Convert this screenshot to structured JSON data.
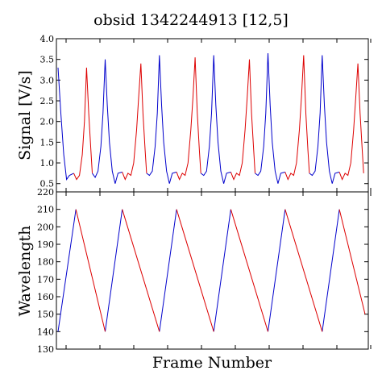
{
  "chart_data": [
    {
      "type": "line",
      "title": "obsid 1342244913 [12,5]",
      "ylabel": "Signal [V/s]",
      "xlabel": "",
      "ylim": [
        0.3,
        4.0
      ],
      "yticks": [
        "0.5",
        "1.0",
        "1.5",
        "2.0",
        "2.5",
        "3.0",
        "3.5",
        "4.0"
      ],
      "grid": false,
      "series": [
        {
          "color": "#0000cc",
          "segments": [
            [
              [
                0,
                3.3
              ],
              [
                4,
                2.2
              ],
              [
                8,
                1.2
              ],
              [
                12,
                0.6
              ],
              [
                16,
                0.7
              ],
              [
                22,
                0.75
              ]
            ],
            [
              [
                48,
                0.75
              ],
              [
                52,
                0.65
              ],
              [
                56,
                0.8
              ],
              [
                60,
                1.4
              ],
              [
                63,
                2.2
              ],
              [
                66,
                3.5
              ],
              [
                69,
                2.4
              ],
              [
                72,
                1.5
              ],
              [
                76,
                0.8
              ],
              [
                80,
                0.5
              ],
              [
                84,
                0.75
              ],
              [
                90,
                0.78
              ]
            ],
            [
              [
                124,
                0.75
              ],
              [
                128,
                0.7
              ],
              [
                132,
                0.8
              ],
              [
                136,
                1.4
              ],
              [
                139,
                2.2
              ],
              [
                142,
                3.6
              ],
              [
                145,
                2.4
              ],
              [
                148,
                1.5
              ],
              [
                152,
                0.8
              ],
              [
                156,
                0.5
              ],
              [
                160,
                0.75
              ],
              [
                166,
                0.78
              ]
            ],
            [
              [
                200,
                0.75
              ],
              [
                204,
                0.7
              ],
              [
                208,
                0.8
              ],
              [
                212,
                1.4
              ],
              [
                215,
                2.2
              ],
              [
                218,
                3.6
              ],
              [
                221,
                2.4
              ],
              [
                224,
                1.5
              ],
              [
                228,
                0.8
              ],
              [
                232,
                0.5
              ],
              [
                236,
                0.75
              ],
              [
                242,
                0.78
              ]
            ],
            [
              [
                276,
                0.75
              ],
              [
                280,
                0.7
              ],
              [
                284,
                0.8
              ],
              [
                288,
                1.4
              ],
              [
                291,
                2.2
              ],
              [
                294,
                3.65
              ],
              [
                297,
                2.4
              ],
              [
                300,
                1.5
              ],
              [
                304,
                0.8
              ],
              [
                308,
                0.5
              ],
              [
                312,
                0.75
              ],
              [
                318,
                0.78
              ]
            ],
            [
              [
                352,
                0.75
              ],
              [
                356,
                0.7
              ],
              [
                360,
                0.8
              ],
              [
                364,
                1.4
              ],
              [
                367,
                2.2
              ],
              [
                370,
                3.6
              ],
              [
                373,
                2.4
              ],
              [
                376,
                1.5
              ],
              [
                380,
                0.8
              ],
              [
                384,
                0.5
              ],
              [
                388,
                0.75
              ],
              [
                394,
                0.78
              ]
            ]
          ]
        },
        {
          "color": "#dd0000",
          "segments": [
            [
              [
                22,
                0.75
              ],
              [
                26,
                0.6
              ],
              [
                30,
                0.7
              ],
              [
                34,
                1.2
              ],
              [
                37,
                2.0
              ],
              [
                40,
                3.3
              ],
              [
                43,
                2.2
              ],
              [
                46,
                1.3
              ],
              [
                48,
                0.75
              ]
            ],
            [
              [
                90,
                0.78
              ],
              [
                94,
                0.6
              ],
              [
                98,
                0.75
              ],
              [
                102,
                0.7
              ],
              [
                106,
                1.0
              ],
              [
                110,
                1.8
              ],
              [
                113,
                2.6
              ],
              [
                116,
                3.4
              ],
              [
                119,
                2.2
              ],
              [
                122,
                1.3
              ],
              [
                124,
                0.75
              ]
            ],
            [
              [
                166,
                0.78
              ],
              [
                170,
                0.6
              ],
              [
                174,
                0.75
              ],
              [
                178,
                0.7
              ],
              [
                182,
                1.0
              ],
              [
                186,
                1.8
              ],
              [
                189,
                2.6
              ],
              [
                192,
                3.55
              ],
              [
                195,
                2.2
              ],
              [
                198,
                1.3
              ],
              [
                200,
                0.75
              ]
            ],
            [
              [
                242,
                0.78
              ],
              [
                246,
                0.6
              ],
              [
                250,
                0.75
              ],
              [
                254,
                0.7
              ],
              [
                258,
                1.0
              ],
              [
                262,
                1.8
              ],
              [
                265,
                2.6
              ],
              [
                268,
                3.5
              ],
              [
                271,
                2.2
              ],
              [
                274,
                1.3
              ],
              [
                276,
                0.75
              ]
            ],
            [
              [
                318,
                0.78
              ],
              [
                322,
                0.6
              ],
              [
                326,
                0.75
              ],
              [
                330,
                0.7
              ],
              [
                334,
                1.0
              ],
              [
                338,
                1.8
              ],
              [
                341,
                2.6
              ],
              [
                344,
                3.6
              ],
              [
                347,
                2.2
              ],
              [
                350,
                1.3
              ],
              [
                352,
                0.75
              ]
            ],
            [
              [
                394,
                0.78
              ],
              [
                398,
                0.6
              ],
              [
                402,
                0.75
              ],
              [
                406,
                0.7
              ],
              [
                410,
                1.0
              ],
              [
                414,
                1.8
              ],
              [
                417,
                2.6
              ],
              [
                420,
                3.4
              ],
              [
                423,
                2.2
              ],
              [
                426,
                1.3
              ],
              [
                428,
                0.75
              ]
            ]
          ]
        }
      ]
    },
    {
      "type": "line",
      "title": "",
      "ylabel": "Wavelength",
      "xlabel": "Frame Number",
      "ylim": [
        130,
        220
      ],
      "yticks": [
        "130",
        "140",
        "150",
        "160",
        "170",
        "180",
        "190",
        "200",
        "210",
        "220"
      ],
      "grid": false,
      "series": [
        {
          "color": "#0000cc",
          "segments": [
            [
              [
                0,
                140
              ],
              [
                25,
                210
              ]
            ],
            [
              [
                66,
                140
              ],
              [
                90,
                210
              ]
            ],
            [
              [
                142,
                140
              ],
              [
                166,
                210
              ]
            ],
            [
              [
                218,
                140
              ],
              [
                242,
                210
              ]
            ],
            [
              [
                294,
                140
              ],
              [
                318,
                210
              ]
            ],
            [
              [
                370,
                140
              ],
              [
                394,
                210
              ]
            ]
          ]
        },
        {
          "color": "#dd0000",
          "segments": [
            [
              [
                25,
                210
              ],
              [
                66,
                140
              ]
            ],
            [
              [
                90,
                210
              ],
              [
                142,
                140
              ]
            ],
            [
              [
                166,
                210
              ],
              [
                218,
                140
              ]
            ],
            [
              [
                242,
                210
              ],
              [
                294,
                140
              ]
            ],
            [
              [
                318,
                210
              ],
              [
                370,
                140
              ]
            ],
            [
              [
                394,
                210
              ],
              [
                430,
                150
              ]
            ]
          ]
        }
      ]
    }
  ]
}
